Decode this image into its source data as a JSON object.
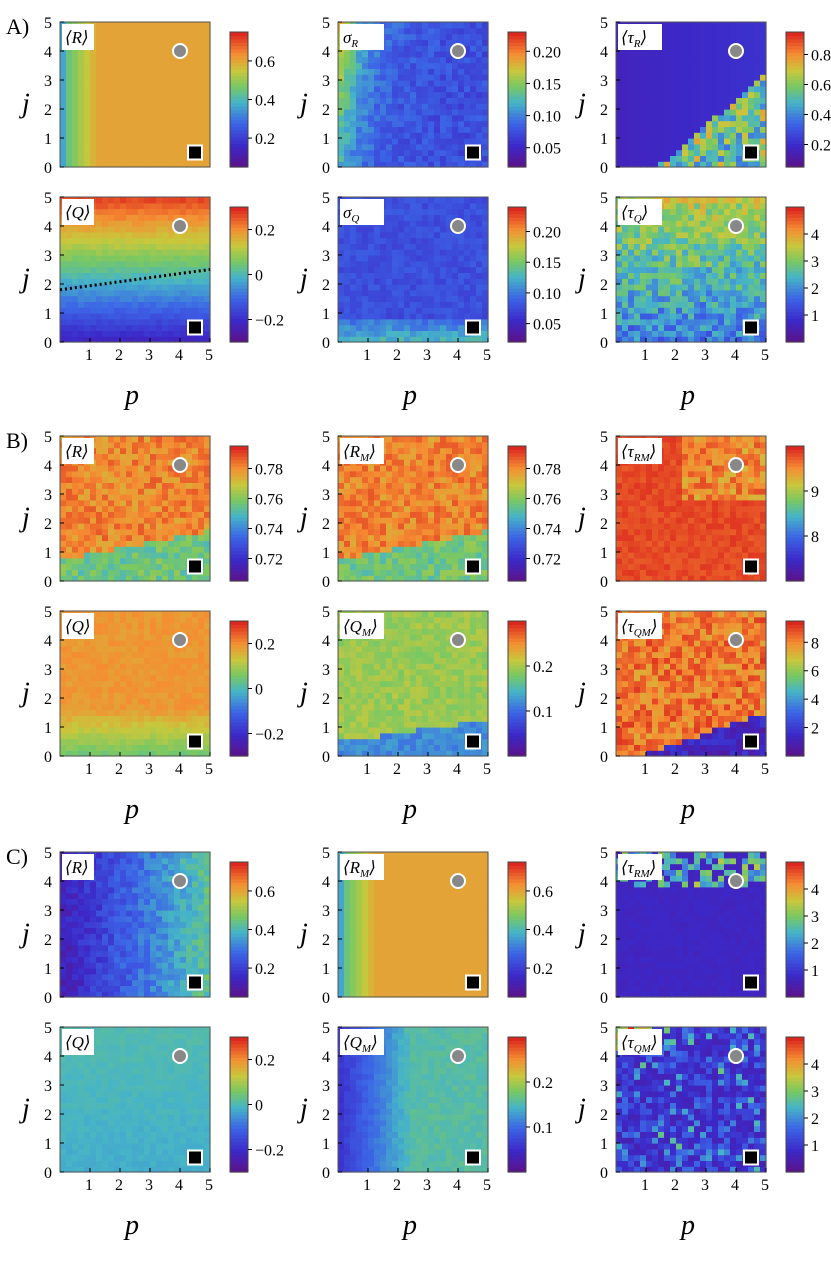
{
  "figure": {
    "sections": [
      {
        "label": "A)",
        "panels": [
          {
            "label": "⟨R⟩",
            "pattern": "grad_p",
            "cbar_ticks": [
              "0.2",
              "0.4",
              "0.6"
            ],
            "cbar_range": [
              0.05,
              0.75
            ],
            "show_y": true,
            "show_x": false
          },
          {
            "label": "σ",
            "sub": "R",
            "pattern": "low_right",
            "cbar_ticks": [
              "0.05",
              "0.10",
              "0.15",
              "0.20"
            ],
            "cbar_range": [
              0.02,
              0.23
            ],
            "show_y": true,
            "show_x": false
          },
          {
            "label": "⟨τ",
            "sub": "R",
            "tail": "⟩",
            "pattern": "tau_r",
            "cbar_ticks": [
              "0.2",
              "0.4",
              "0.6",
              "0.8"
            ],
            "cbar_range": [
              0.05,
              0.95
            ],
            "show_y": true,
            "show_x": false
          },
          {
            "label": "⟨Q⟩",
            "pattern": "q_a",
            "cbar_ticks": [
              "−0.2",
              "0",
              "0.2"
            ],
            "cbar_range": [
              -0.3,
              0.3
            ],
            "show_y": true,
            "show_x": true,
            "dotted_line": true
          },
          {
            "label": "σ",
            "sub": "Q",
            "pattern": "sigma_q",
            "cbar_ticks": [
              "0.05",
              "0.10",
              "0.15",
              "0.20"
            ],
            "cbar_range": [
              0.02,
              0.24
            ],
            "show_y": true,
            "show_x": true
          },
          {
            "label": "⟨τ",
            "sub": "Q",
            "tail": "⟩",
            "pattern": "noisy_mid",
            "cbar_ticks": [
              "1",
              "2",
              "3",
              "4"
            ],
            "cbar_range": [
              0,
              5
            ],
            "show_y": true,
            "show_x": true
          }
        ]
      },
      {
        "label": "B)",
        "panels": [
          {
            "label": "⟨R⟩",
            "pattern": "r_b",
            "cbar_ticks": [
              "0.72",
              "0.74",
              "0.76",
              "0.78"
            ],
            "cbar_range": [
              0.705,
              0.795
            ],
            "show_y": true,
            "show_x": false
          },
          {
            "label": "⟨R",
            "sub": "M",
            "tail": "⟩",
            "pattern": "r_b",
            "cbar_ticks": [
              "0.72",
              "0.74",
              "0.76",
              "0.78"
            ],
            "cbar_range": [
              0.705,
              0.795
            ],
            "show_y": true,
            "show_x": false
          },
          {
            "label": "⟨τ",
            "sub": "RM",
            "tail": "⟩",
            "pattern": "tau_rm_b",
            "cbar_ticks": [
              "8",
              "9"
            ],
            "cbar_range": [
              7,
              10
            ],
            "show_y": true,
            "show_x": false
          },
          {
            "label": "⟨Q⟩",
            "pattern": "q_b",
            "cbar_ticks": [
              "−0.2",
              "0",
              "0.2"
            ],
            "cbar_range": [
              -0.3,
              0.3
            ],
            "show_y": true,
            "show_x": true
          },
          {
            "label": "⟨Q",
            "sub": "M",
            "tail": "⟩",
            "pattern": "qm_b",
            "cbar_ticks": [
              "0.1",
              "0.2"
            ],
            "cbar_range": [
              0,
              0.3
            ],
            "show_y": true,
            "show_x": true
          },
          {
            "label": "⟨τ",
            "sub": "QM",
            "tail": "⟩",
            "pattern": "tau_qm_b",
            "cbar_ticks": [
              "2",
              "4",
              "6",
              "8"
            ],
            "cbar_range": [
              0,
              9.5
            ],
            "show_y": true,
            "show_x": true
          }
        ]
      },
      {
        "label": "C)",
        "panels": [
          {
            "label": "⟨R⟩",
            "pattern": "r_c",
            "cbar_ticks": [
              "0.2",
              "0.4",
              "0.6"
            ],
            "cbar_range": [
              0.05,
              0.75
            ],
            "show_y": true,
            "show_x": false
          },
          {
            "label": "⟨R",
            "sub": "M",
            "tail": "⟩",
            "pattern": "grad_p",
            "cbar_ticks": [
              "0.2",
              "0.4",
              "0.6"
            ],
            "cbar_range": [
              0.05,
              0.75
            ],
            "show_y": true,
            "show_x": false
          },
          {
            "label": "⟨τ",
            "sub": "RM",
            "tail": "⟩",
            "pattern": "tau_rm_c",
            "cbar_ticks": [
              "1",
              "2",
              "3",
              "4"
            ],
            "cbar_range": [
              0,
              5
            ],
            "show_y": true,
            "show_x": false
          },
          {
            "label": "⟨Q⟩",
            "pattern": "q_c",
            "cbar_ticks": [
              "−0.2",
              "0",
              "0.2"
            ],
            "cbar_range": [
              -0.3,
              0.3
            ],
            "show_y": true,
            "show_x": true
          },
          {
            "label": "⟨Q",
            "sub": "M",
            "tail": "⟩",
            "pattern": "qm_c",
            "cbar_ticks": [
              "0.1",
              "0.2"
            ],
            "cbar_range": [
              0,
              0.3
            ],
            "show_y": true,
            "show_x": true
          },
          {
            "label": "⟨τ",
            "sub": "QM",
            "tail": "⟩",
            "pattern": "tau_qm_c",
            "cbar_ticks": [
              "1",
              "2",
              "3",
              "4"
            ],
            "cbar_range": [
              0,
              5
            ],
            "show_y": true,
            "show_x": true
          }
        ]
      }
    ]
  },
  "chart_data": {
    "type": "heatmap",
    "title": "",
    "xlabel": "p",
    "ylabel": "j",
    "x_range": [
      0,
      5
    ],
    "y_range": [
      0,
      5
    ],
    "x_ticks": [
      "1",
      "2",
      "3",
      "4",
      "5"
    ],
    "y_ticks": [
      "0",
      "1",
      "2",
      "3",
      "4",
      "5"
    ],
    "grid_resolution": 25,
    "markers": [
      {
        "shape": "circle",
        "color": "gray",
        "p": 4,
        "j": 4
      },
      {
        "shape": "square",
        "color": "black",
        "p": 4.5,
        "j": 0.5
      }
    ],
    "colormap": "rainbow (purple-blue-cyan-green-yellow-orange-red)"
  }
}
